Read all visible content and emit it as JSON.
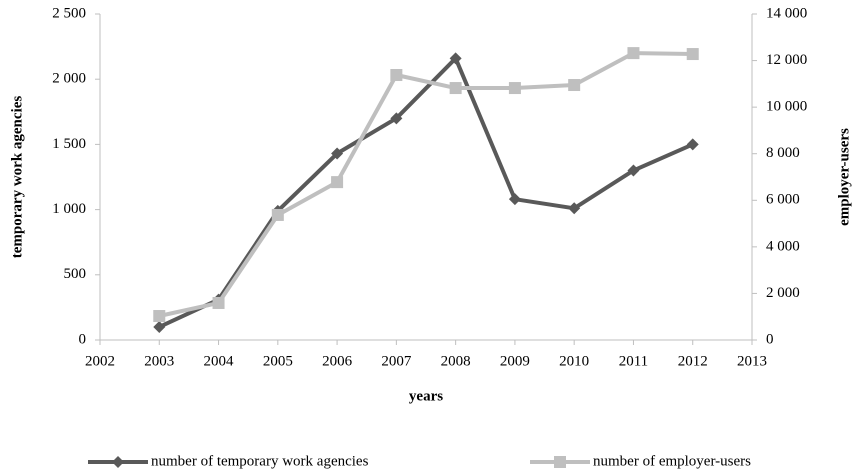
{
  "chart_data": {
    "type": "line",
    "xlabel": "years",
    "ylabel": "temporary  work agencies",
    "y2label": "employer-users",
    "x": [
      2003,
      2004,
      2005,
      2006,
      2007,
      2008,
      2009,
      2010,
      2011,
      2012
    ],
    "xlim": [
      2002,
      2013
    ],
    "xticks": [
      2002,
      2003,
      2004,
      2005,
      2006,
      2007,
      2008,
      2009,
      2010,
      2011,
      2012,
      2013
    ],
    "ylim": [
      0,
      2500
    ],
    "yticks": [
      0,
      500,
      {
        "value": 1000,
        "label": "1 000"
      },
      {
        "value": 1500,
        "label": "1 500"
      },
      {
        "value": 2000,
        "label": "2 000"
      },
      {
        "value": 2500,
        "label": "2 500"
      }
    ],
    "y2lim": [
      0,
      14000
    ],
    "y2ticks": [
      0,
      {
        "value": 2000,
        "label": "2 000"
      },
      {
        "value": 4000,
        "label": "4 000"
      },
      {
        "value": 6000,
        "label": "6 000"
      },
      {
        "value": 8000,
        "label": "8 000"
      },
      {
        "value": 10000,
        "label": "10 000"
      },
      {
        "value": 12000,
        "label": "12 000"
      },
      {
        "value": 14000,
        "label": "14 000"
      }
    ],
    "legend": "bottom",
    "series": [
      {
        "name": "number of temporary work agencies",
        "color": "#595959",
        "marker": "diamond",
        "axis": "y",
        "values": [
          100,
          310,
          990,
          1430,
          1700,
          2160,
          1080,
          1010,
          1300,
          1500
        ]
      },
      {
        "name": "number of employer-users",
        "color": "#bfbfbf",
        "marker": "square",
        "axis": "y2",
        "values": [
          1030,
          1590,
          5370,
          6780,
          11380,
          10820,
          10820,
          10950,
          12320,
          12280
        ]
      }
    ]
  }
}
